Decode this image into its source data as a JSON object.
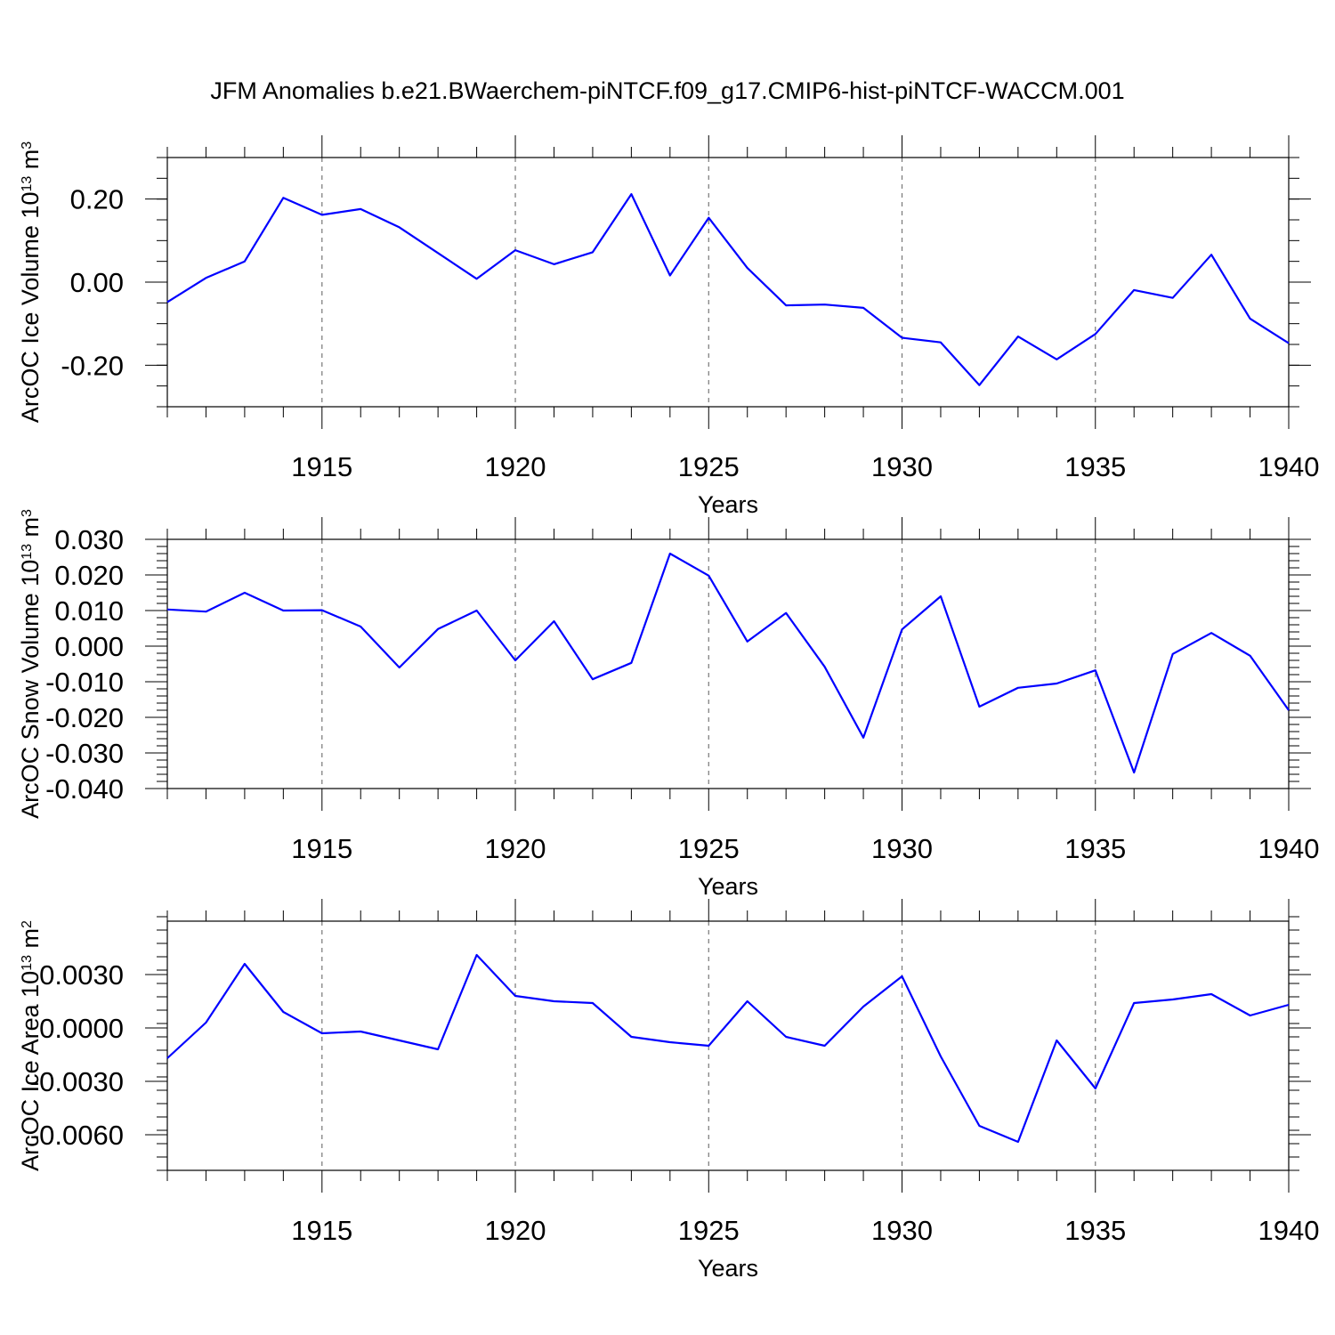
{
  "title": "JFM Anomalies b.e21.BWaerchem-piNTCF.f09_g17.CMIP6-hist-piNTCF-WACCM.001",
  "chart_data": [
    {
      "type": "line",
      "xlabel": "Years",
      "ylabel_main": "ArcOC Ice Volume 10",
      "ylabel_exp": "13",
      "ylabel_unit": " m",
      "ylabel_unit_exp": "3",
      "xlim": [
        1911,
        1940
      ],
      "ylim": [
        -0.3,
        0.3
      ],
      "xticks": [
        1915,
        1920,
        1925,
        1930,
        1935,
        1940
      ],
      "xtick_labels": [
        "1915",
        "1920",
        "1925",
        "1930",
        "1935",
        "1940"
      ],
      "yticks": [
        0.2,
        0.0,
        -0.2
      ],
      "ytick_labels": [
        "0.20",
        "0.00",
        "-0.20"
      ],
      "yminor_step": 0.05,
      "grid": "dashed vertical at major x ticks",
      "x": [
        1911,
        1912,
        1913,
        1914,
        1915,
        1916,
        1917,
        1918,
        1919,
        1920,
        1921,
        1922,
        1923,
        1924,
        1925,
        1926,
        1927,
        1928,
        1929,
        1930,
        1931,
        1932,
        1933,
        1934,
        1935,
        1936,
        1937,
        1938,
        1939,
        1940
      ],
      "values": [
        -0.048,
        0.01,
        0.05,
        0.203,
        0.162,
        0.176,
        0.132,
        0.07,
        0.008,
        0.077,
        0.043,
        0.072,
        0.212,
        0.016,
        0.155,
        0.034,
        -0.056,
        -0.054,
        -0.062,
        -0.134,
        -0.145,
        -0.248,
        -0.131,
        -0.186,
        -0.125,
        -0.019,
        -0.038,
        0.066,
        -0.088,
        -0.147
      ]
    },
    {
      "type": "line",
      "xlabel": "Years",
      "ylabel_main": "ArcOC Snow Volume 10",
      "ylabel_exp": "13",
      "ylabel_unit": " m",
      "ylabel_unit_exp": "3",
      "xlim": [
        1911,
        1940
      ],
      "ylim": [
        -0.04,
        0.03
      ],
      "xticks": [
        1915,
        1920,
        1925,
        1930,
        1935,
        1940
      ],
      "xtick_labels": [
        "1915",
        "1920",
        "1925",
        "1930",
        "1935",
        "1940"
      ],
      "yticks": [
        0.03,
        0.02,
        0.01,
        0.0,
        -0.01,
        -0.02,
        -0.03,
        -0.04
      ],
      "ytick_labels": [
        "0.030",
        "0.020",
        "0.010",
        "0.000",
        "-0.010",
        "-0.020",
        "-0.030",
        "-0.040"
      ],
      "yminor_step": 0.002,
      "grid": "dashed vertical at major x ticks",
      "x": [
        1911,
        1912,
        1913,
        1914,
        1915,
        1916,
        1917,
        1918,
        1919,
        1920,
        1921,
        1922,
        1923,
        1924,
        1925,
        1926,
        1927,
        1928,
        1929,
        1930,
        1931,
        1932,
        1933,
        1934,
        1935,
        1936,
        1937,
        1938,
        1939,
        1940
      ],
      "values": [
        0.0103,
        0.0097,
        0.015,
        0.01,
        0.0101,
        0.0055,
        -0.006,
        0.0048,
        0.01,
        -0.004,
        0.007,
        -0.0093,
        -0.0047,
        0.026,
        0.0198,
        0.0013,
        0.0093,
        -0.0058,
        -0.0257,
        0.0047,
        0.014,
        -0.017,
        -0.0117,
        -0.0105,
        -0.0068,
        -0.0355,
        -0.0022,
        0.0037,
        -0.0027,
        -0.018
      ]
    },
    {
      "type": "line",
      "xlabel": "Years",
      "ylabel_main": "ArcOC Ice Area 10",
      "ylabel_exp": "13",
      "ylabel_unit": " m",
      "ylabel_unit_exp": "2",
      "xlim": [
        1911,
        1940
      ],
      "ylim": [
        -0.008,
        0.006
      ],
      "xticks": [
        1915,
        1920,
        1925,
        1930,
        1935,
        1940
      ],
      "xtick_labels": [
        "1915",
        "1920",
        "1925",
        "1930",
        "1935",
        "1940"
      ],
      "yticks": [
        0.003,
        0.0,
        -0.003,
        -0.006
      ],
      "ytick_labels": [
        "0.0030",
        "0.0000",
        "-0.0030",
        "-0.0060"
      ],
      "yminor_step": 0.00075,
      "grid": "dashed vertical at major x ticks",
      "x": [
        1911,
        1912,
        1913,
        1914,
        1915,
        1916,
        1917,
        1918,
        1919,
        1920,
        1921,
        1922,
        1923,
        1924,
        1925,
        1926,
        1927,
        1928,
        1929,
        1930,
        1931,
        1932,
        1933,
        1934,
        1935,
        1936,
        1937,
        1938,
        1939,
        1940
      ],
      "values": [
        -0.0017,
        0.0003,
        0.0036,
        0.0009,
        -0.0003,
        -0.0002,
        -0.0007,
        -0.0012,
        0.0041,
        0.0018,
        0.0015,
        0.0014,
        -0.0005,
        -0.0008,
        -0.001,
        0.0015,
        -0.0005,
        -0.001,
        0.0012,
        0.0029,
        -0.0016,
        -0.0055,
        -0.0064,
        -0.0007,
        -0.0034,
        0.0014,
        0.0016,
        0.0019,
        0.0007,
        0.0013
      ]
    }
  ]
}
